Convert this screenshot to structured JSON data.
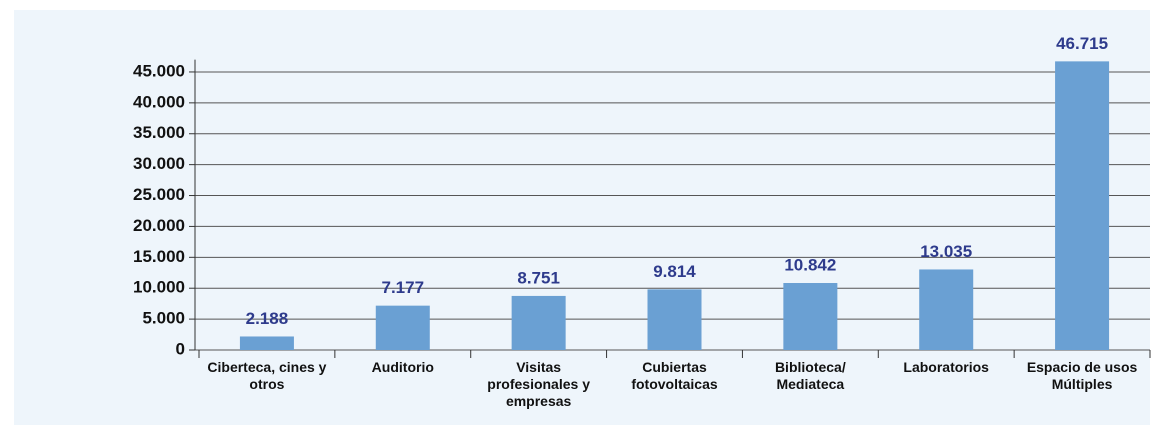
{
  "chart_data": {
    "type": "bar",
    "categories": [
      "Ciberteca, cines y otros",
      "Auditorio",
      "Visitas profesionales y empresas",
      "Cubiertas fotovoltaicas",
      "Biblioteca/ Mediateca",
      "Laboratorios",
      "Espacio de usos Múltiples"
    ],
    "values": [
      2188,
      7177,
      8751,
      9814,
      10842,
      13035,
      46715
    ],
    "value_labels": [
      "2.188",
      "7.177",
      "8.751",
      "9.814",
      "10.842",
      "13.035",
      "46.715"
    ],
    "color": "#6aa0d3",
    "ylim": [
      0,
      47000
    ],
    "yticks": [
      0,
      {
        "value": 5000,
        "label": "5.000"
      },
      {
        "value": 10000,
        "label": "10.000"
      },
      {
        "value": 15000,
        "label": "15.000"
      },
      {
        "value": 20000,
        "label": "20.000"
      },
      {
        "value": 25000,
        "label": "25.000"
      },
      {
        "value": 30000,
        "label": "30.000"
      },
      {
        "value": 35000,
        "label": "35.000"
      },
      {
        "value": 40000,
        "label": "40.000"
      },
      {
        "value": 45000,
        "label": "45.000"
      }
    ],
    "grid": true
  }
}
